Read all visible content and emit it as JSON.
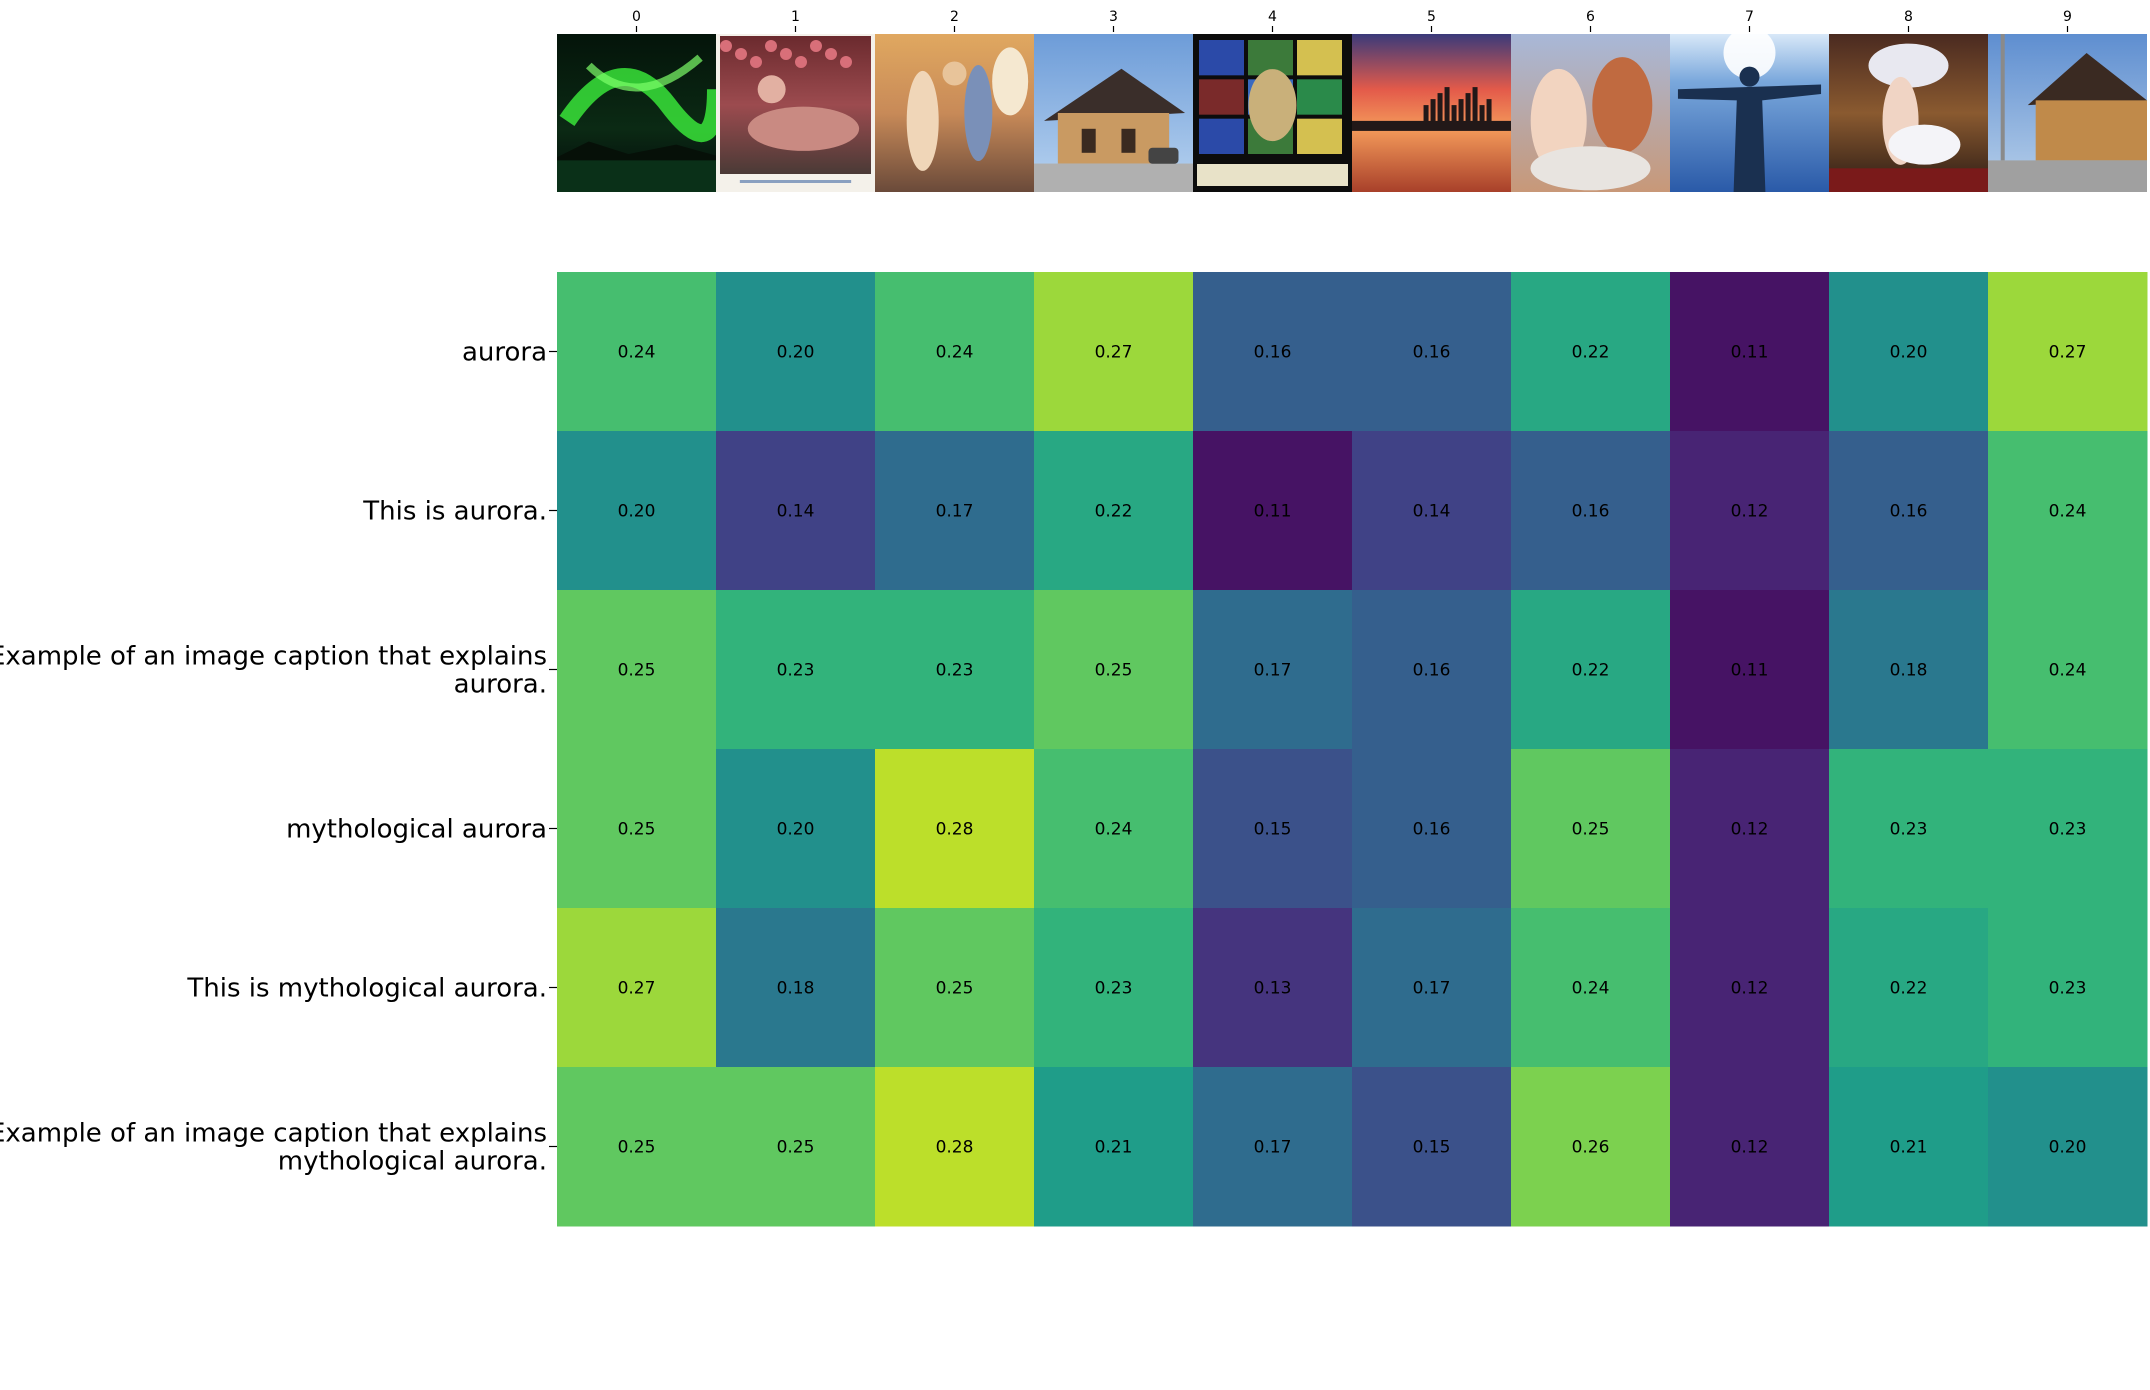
{
  "chart_data": {
    "type": "heatmap",
    "title": "",
    "xlabel": "",
    "ylabel": "",
    "x_tick_labels": [
      "0",
      "1",
      "2",
      "3",
      "4",
      "5",
      "6",
      "7",
      "8",
      "9"
    ],
    "images": [
      {
        "id": "0",
        "subject": "green aurora borealis over water at night"
      },
      {
        "id": "1",
        "subject": "pre-raphaelite painting of reclining woman among roses"
      },
      {
        "id": "2",
        "subject": "classical mythological painting with figures in sky"
      },
      {
        "id": "3",
        "subject": "small historic train depot building"
      },
      {
        "id": "4",
        "subject": "stained glass window with figure and text"
      },
      {
        "id": "5",
        "subject": "city skyline at sunset over water"
      },
      {
        "id": "6",
        "subject": "classical painting of gods on clouds"
      },
      {
        "id": "7",
        "subject": "statue silhouette against bright sky"
      },
      {
        "id": "8",
        "subject": "painting of winged woman with flowing drapery"
      },
      {
        "id": "9",
        "subject": "historic train depot building on street"
      }
    ],
    "rows": [
      "aurora",
      "This is aurora.",
      "Example of an image caption that explains aurora.",
      "mythological aurora",
      "This is mythological aurora.",
      "Example of an image caption that explains mythological aurora."
    ],
    "row_label_lines": [
      [
        "aurora"
      ],
      [
        "This is aurora."
      ],
      [
        "Example of an image caption that explains",
        "aurora."
      ],
      [
        "mythological aurora"
      ],
      [
        "This is mythological aurora."
      ],
      [
        "Example of an image caption that explains",
        "mythological aurora."
      ]
    ],
    "values": [
      [
        0.24,
        0.2,
        0.24,
        0.27,
        0.16,
        0.16,
        0.22,
        0.11,
        0.2,
        0.27
      ],
      [
        0.2,
        0.14,
        0.17,
        0.22,
        0.11,
        0.14,
        0.16,
        0.12,
        0.16,
        0.24
      ],
      [
        0.25,
        0.23,
        0.23,
        0.25,
        0.17,
        0.16,
        0.22,
        0.11,
        0.18,
        0.24
      ],
      [
        0.25,
        0.2,
        0.28,
        0.24,
        0.15,
        0.16,
        0.25,
        0.12,
        0.23,
        0.23
      ],
      [
        0.27,
        0.18,
        0.25,
        0.23,
        0.13,
        0.17,
        0.24,
        0.12,
        0.22,
        0.23
      ],
      [
        0.25,
        0.25,
        0.28,
        0.21,
        0.17,
        0.15,
        0.26,
        0.12,
        0.21,
        0.2
      ]
    ],
    "value_format": "2 decimals",
    "colormap": "viridis",
    "vmin": 0.1,
    "vmax": 0.3,
    "grid": false,
    "legend": "none",
    "colors": {
      "viridis_stops": [
        "#440154",
        "#482878",
        "#3e4989",
        "#31688e",
        "#26828e",
        "#1f9e89",
        "#35b779",
        "#6ece58",
        "#b5de2b",
        "#fde725"
      ]
    }
  }
}
